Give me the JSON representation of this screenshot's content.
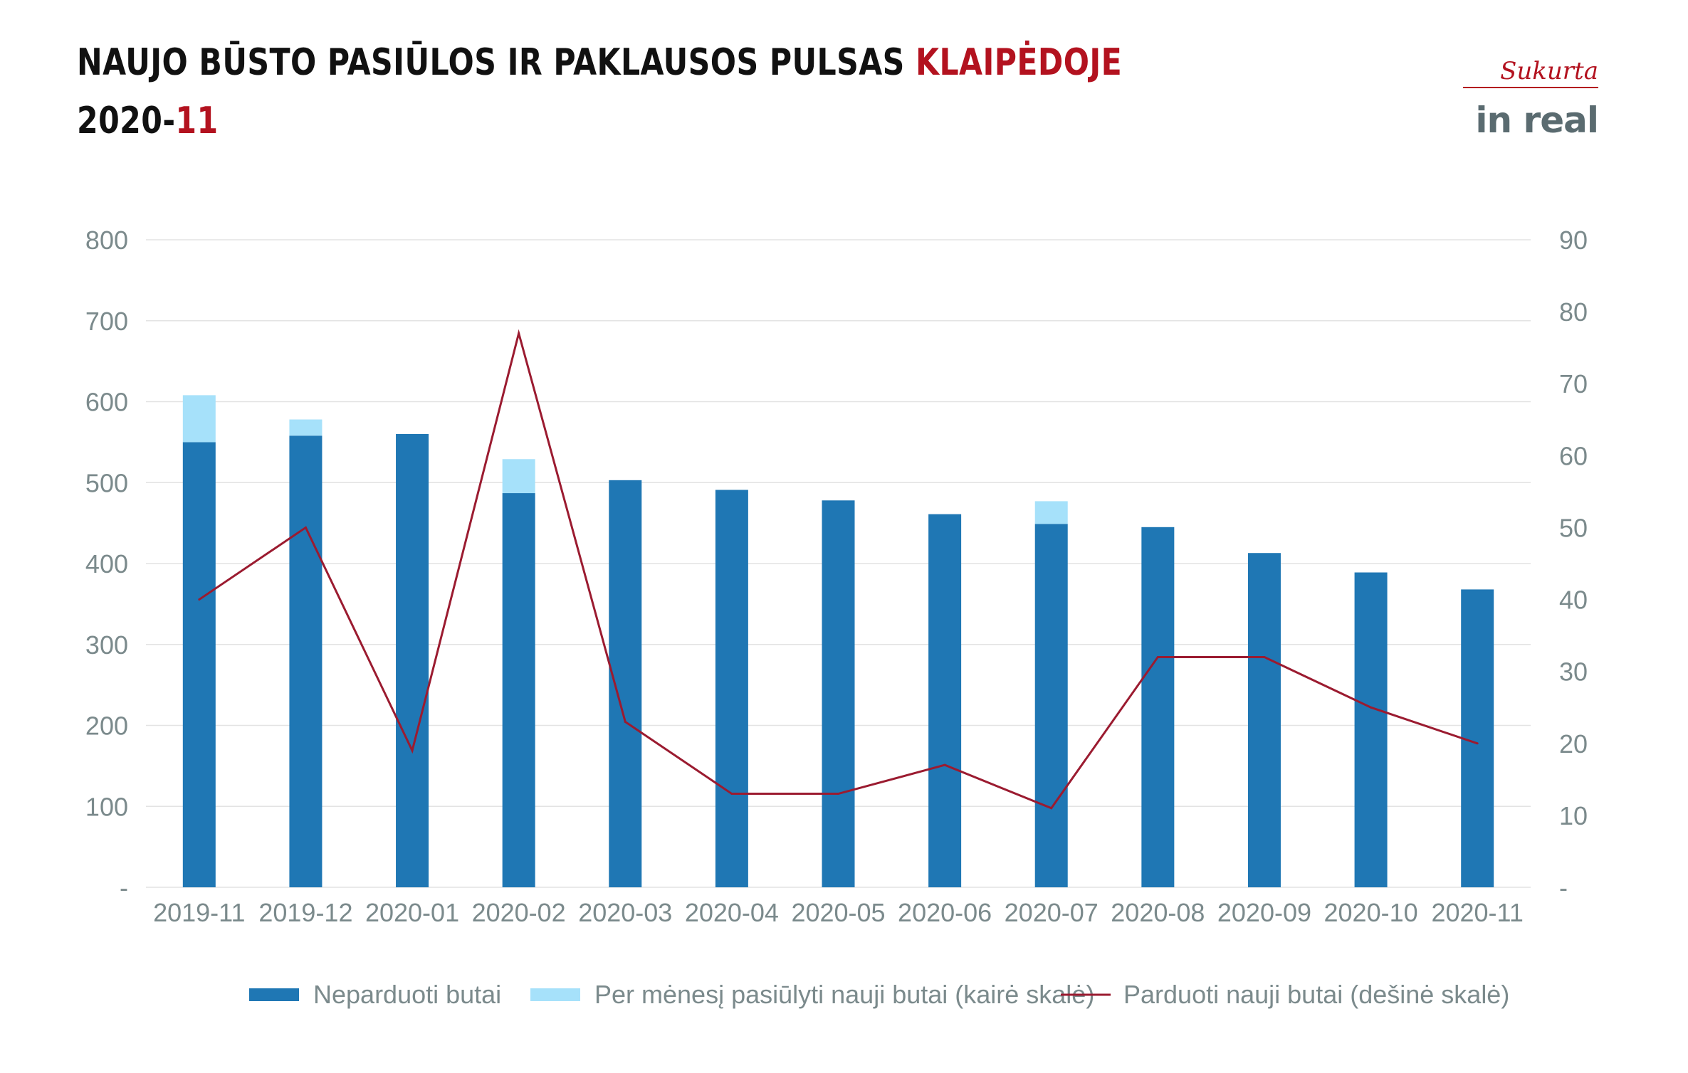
{
  "header": {
    "title_main": "NAUJO BŪSTO PASIŪLOS IR PAKLAUSOS PULSAS ",
    "title_accent": "KLAIPĖDOJE",
    "period_main": "2020-",
    "period_accent": "11"
  },
  "logo": {
    "subtitle": "Sukurta",
    "brand": "in real"
  },
  "colors": {
    "unsold": "#1f77b4",
    "offered": "#a6e1fa",
    "sold_line": "#9b1b30",
    "axis_text": "#7b8a8c",
    "grid": "#e3e3e3",
    "accent": "#b3121f"
  },
  "chart_data": {
    "type": "bar",
    "categories": [
      "2019-11",
      "2019-12",
      "2020-01",
      "2020-02",
      "2020-03",
      "2020-04",
      "2020-05",
      "2020-06",
      "2020-07",
      "2020-08",
      "2020-09",
      "2020-10",
      "2020-11"
    ],
    "series": [
      {
        "name": "Neparduoti butai",
        "type": "bar",
        "axis": "left",
        "stack": "main",
        "values": [
          550,
          558,
          560,
          487,
          503,
          491,
          478,
          461,
          449,
          445,
          413,
          389,
          368
        ]
      },
      {
        "name": "Per mėnesį pasiūlyti nauji butai (kairė skalė)",
        "type": "bar",
        "axis": "left",
        "stack": "main",
        "values": [
          58,
          20,
          0,
          42,
          0,
          0,
          0,
          0,
          28,
          0,
          0,
          0,
          0
        ]
      },
      {
        "name": "Parduoti nauji butai (dešinė skalė)",
        "type": "line",
        "axis": "right",
        "values": [
          40,
          50,
          19,
          77,
          23,
          13,
          13,
          17,
          11,
          32,
          32,
          25,
          20
        ]
      }
    ],
    "left_axis": {
      "min": 0,
      "max": 800,
      "ticks": [
        "-",
        "100",
        "200",
        "300",
        "400",
        "500",
        "600",
        "700",
        "800"
      ],
      "tick_values": [
        0,
        100,
        200,
        300,
        400,
        500,
        600,
        700,
        800
      ]
    },
    "right_axis": {
      "min": 0,
      "max": 90,
      "ticks": [
        "-",
        "10",
        "20",
        "30",
        "40",
        "50",
        "60",
        "70",
        "80",
        "90"
      ],
      "tick_values": [
        0,
        10,
        20,
        30,
        40,
        50,
        60,
        70,
        80,
        90
      ]
    },
    "grid": true,
    "legend_position": "bottom"
  }
}
